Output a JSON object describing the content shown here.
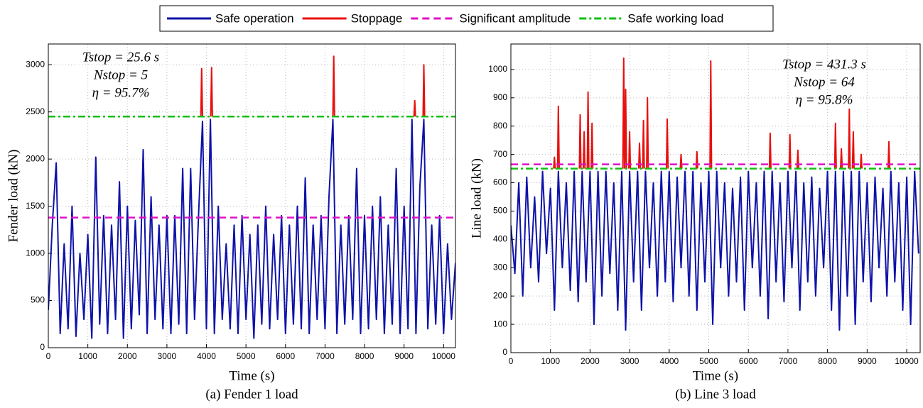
{
  "chart_data": [
    {
      "type": "line",
      "caption": "(a) Fender 1 load",
      "xlabel": "Time (s)",
      "ylabel": "Fender load (kN)",
      "annotations": [
        "Tstop = 25.6 s",
        "Nstop = 5",
        "η = 95.7%"
      ],
      "xlim": [
        0,
        10300
      ],
      "xticks": [
        0,
        1000,
        2000,
        3000,
        4000,
        5000,
        6000,
        7000,
        8000,
        9000,
        10000
      ],
      "ylim": [
        0,
        3220
      ],
      "yticks": [
        0,
        500,
        1000,
        1500,
        2000,
        2500,
        3000
      ],
      "grid": true,
      "series": [
        {
          "name": "Safe operation",
          "color": "#0e12a8",
          "dash": "solid",
          "x": [
            0,
            100,
            200,
            300,
            400,
            500,
            600,
            700,
            800,
            900,
            1000,
            1100,
            1200,
            1300,
            1400,
            1500,
            1600,
            1700,
            1800,
            1900,
            2000,
            2100,
            2200,
            2300,
            2400,
            2500,
            2600,
            2700,
            2800,
            2900,
            3000,
            3100,
            3200,
            3300,
            3400,
            3500,
            3600,
            3700,
            3800,
            3900,
            4000,
            4100,
            4200,
            4300,
            4400,
            4500,
            4600,
            4700,
            4800,
            4900,
            5000,
            5100,
            5200,
            5300,
            5400,
            5500,
            5600,
            5700,
            5800,
            5900,
            6000,
            6100,
            6200,
            6300,
            6400,
            6500,
            6600,
            6700,
            6800,
            6900,
            7000,
            7100,
            7200,
            7300,
            7400,
            7500,
            7600,
            7700,
            7800,
            7900,
            8000,
            8100,
            8200,
            8300,
            8400,
            8500,
            8600,
            8700,
            8800,
            8900,
            9000,
            9100,
            9200,
            9300,
            9400,
            9500,
            9600,
            9700,
            9800,
            9900,
            10000,
            10100,
            10200,
            10300
          ],
          "values": [
            400,
            1300,
            1960,
            150,
            1100,
            200,
            1500,
            120,
            1000,
            300,
            1200,
            100,
            2020,
            250,
            1400,
            150,
            1300,
            300,
            1760,
            100,
            1500,
            200,
            1350,
            350,
            2100,
            150,
            1600,
            300,
            1300,
            200,
            1400,
            150,
            1400,
            250,
            1900,
            150,
            1900,
            300,
            1400,
            2400,
            200,
            2420,
            150,
            1500,
            300,
            1100,
            200,
            1300,
            150,
            1400,
            300,
            1200,
            100,
            1300,
            250,
            1500,
            200,
            1200,
            300,
            1400,
            150,
            1300,
            250,
            1500,
            200,
            1800,
            150,
            1300,
            300,
            1400,
            200,
            1600,
            2420,
            150,
            1300,
            250,
            1400,
            300,
            1900,
            150,
            1400,
            200,
            1500,
            300,
            1600,
            150,
            1300,
            250,
            1900,
            150,
            1500,
            200,
            2420,
            150,
            1700,
            2420,
            200,
            1300,
            250,
            1400,
            150,
            1100,
            300,
            900
          ]
        },
        {
          "name": "Stoppage",
          "color": "#e8100e",
          "dash": "solid",
          "x": [
            3860,
            3880,
            3900,
            3900,
            4110,
            4130,
            4150,
            4150,
            7200,
            7220,
            7240,
            7240,
            9250,
            9270,
            9290,
            9290,
            9480,
            9500,
            9520
          ],
          "values": [
            2450,
            2960,
            2450,
            null,
            2450,
            2970,
            2450,
            null,
            2450,
            3090,
            2450,
            null,
            2450,
            2620,
            2450,
            null,
            2450,
            3000,
            2450
          ]
        },
        {
          "name": "Significant amplitude",
          "color": "#e010c8",
          "dash": "dashed",
          "x": [
            0,
            10300
          ],
          "values": [
            1380,
            1380
          ]
        },
        {
          "name": "Safe working load",
          "color": "#10c010",
          "dash": "dashdot",
          "x": [
            0,
            10300
          ],
          "values": [
            2450,
            2450
          ]
        }
      ]
    },
    {
      "type": "line",
      "caption": "(b) Line 3 load",
      "xlabel": "Time (s)",
      "ylabel": "Line load (kN)",
      "annotations": [
        "Tstop = 431.3 s",
        "Nstop = 64",
        "η = 95.8%"
      ],
      "xlim": [
        0,
        10340
      ],
      "xticks": [
        0,
        1000,
        2000,
        3000,
        4000,
        5000,
        6000,
        7000,
        8000,
        9000,
        10000
      ],
      "ylim": [
        0,
        1090
      ],
      "yticks": [
        0,
        100,
        200,
        300,
        400,
        500,
        600,
        700,
        800,
        900,
        1000
      ],
      "grid": true,
      "series": [
        {
          "color": "#0e12a8",
          "dash": "solid",
          "x": [
            0,
            100,
            200,
            300,
            400,
            500,
            600,
            700,
            800,
            900,
            1000,
            1100,
            1200,
            1300,
            1400,
            1500,
            1600,
            1700,
            1800,
            1900,
            2000,
            2100,
            2200,
            2300,
            2400,
            2500,
            2600,
            2700,
            2800,
            2900,
            3000,
            3100,
            3200,
            3300,
            3400,
            3500,
            3600,
            3700,
            3800,
            3900,
            4000,
            4100,
            4200,
            4300,
            4400,
            4500,
            4600,
            4700,
            4800,
            4900,
            5000,
            5100,
            5200,
            5300,
            5400,
            5500,
            5600,
            5700,
            5800,
            5900,
            6000,
            6100,
            6200,
            6300,
            6400,
            6500,
            6600,
            6700,
            6800,
            6900,
            7000,
            7100,
            7200,
            7300,
            7400,
            7500,
            7600,
            7700,
            7800,
            7900,
            8000,
            8100,
            8200,
            8300,
            8400,
            8500,
            8600,
            8700,
            8800,
            8900,
            9000,
            9100,
            9200,
            9300,
            9400,
            9500,
            9600,
            9700,
            9800,
            9900,
            10000,
            10100,
            10200,
            10300
          ],
          "values": [
            450,
            280,
            600,
            200,
            620,
            300,
            550,
            250,
            640,
            350,
            580,
            150,
            640,
            300,
            600,
            220,
            640,
            180,
            640,
            250,
            640,
            100,
            640,
            200,
            640,
            280,
            600,
            150,
            640,
            80,
            640,
            250,
            640,
            150,
            640,
            300,
            600,
            200,
            640,
            250,
            640,
            180,
            620,
            300,
            640,
            200,
            640,
            150,
            600,
            250,
            640,
            100,
            640,
            300,
            600,
            200,
            580,
            250,
            620,
            150,
            640,
            300,
            600,
            200,
            640,
            120,
            640,
            250,
            600,
            180,
            640,
            300,
            640,
            150,
            600,
            250,
            620,
            200,
            580,
            300,
            640,
            150,
            640,
            80,
            640,
            200,
            640,
            100,
            640,
            250,
            600,
            180,
            620,
            300,
            580,
            200,
            640,
            250,
            600,
            150,
            620,
            100,
            640,
            350
          ]
        },
        {
          "color": "#e8100e",
          "dash": "solid",
          "x": [
            1080,
            1100,
            1120,
            1120,
            1180,
            1200,
            1220,
            1220,
            1730,
            1750,
            1770,
            1770,
            1830,
            1850,
            1870,
            1870,
            1930,
            1950,
            1970,
            1970,
            2030,
            2050,
            2070,
            2070,
            2830,
            2850,
            2870,
            2870,
            2880,
            2900,
            2920,
            2920,
            2980,
            3000,
            3020,
            3020,
            3230,
            3250,
            3270,
            3270,
            3330,
            3350,
            3370,
            3370,
            3430,
            3450,
            3470,
            3470,
            3930,
            3950,
            3970,
            3970,
            4280,
            4300,
            4320,
            4320,
            4680,
            4700,
            4720,
            4720,
            5030,
            5050,
            5070,
            5070,
            6530,
            6550,
            6570,
            6570,
            7030,
            7050,
            7070,
            7070,
            7230,
            7250,
            7270,
            7270,
            8180,
            8200,
            8220,
            8220,
            8330,
            8350,
            8370,
            8370,
            8530,
            8550,
            8570,
            8570,
            8630,
            8650,
            8670,
            8670,
            8830,
            8850,
            8870,
            8870,
            9530,
            9550,
            9570
          ],
          "values": [
            650,
            690,
            650,
            null,
            650,
            870,
            650,
            null,
            650,
            840,
            650,
            null,
            650,
            780,
            650,
            null,
            650,
            920,
            650,
            null,
            650,
            810,
            650,
            null,
            650,
            1040,
            650,
            null,
            650,
            930,
            650,
            null,
            650,
            780,
            650,
            null,
            650,
            740,
            650,
            null,
            650,
            820,
            650,
            null,
            650,
            900,
            650,
            null,
            650,
            825,
            650,
            null,
            650,
            700,
            650,
            null,
            650,
            710,
            650,
            null,
            650,
            1030,
            650,
            null,
            650,
            775,
            650,
            null,
            650,
            770,
            650,
            null,
            650,
            715,
            650,
            null,
            650,
            810,
            650,
            null,
            650,
            720,
            650,
            null,
            650,
            860,
            650,
            null,
            650,
            780,
            650,
            null,
            650,
            700,
            650,
            null,
            650,
            745,
            650
          ]
        },
        {
          "color": "#e010c8",
          "dash": "dashed",
          "x": [
            0,
            10340
          ],
          "values": [
            665,
            665
          ]
        },
        {
          "color": "#10c010",
          "dash": "dashdot",
          "x": [
            0,
            10340
          ],
          "values": [
            650,
            650
          ]
        }
      ]
    }
  ]
}
